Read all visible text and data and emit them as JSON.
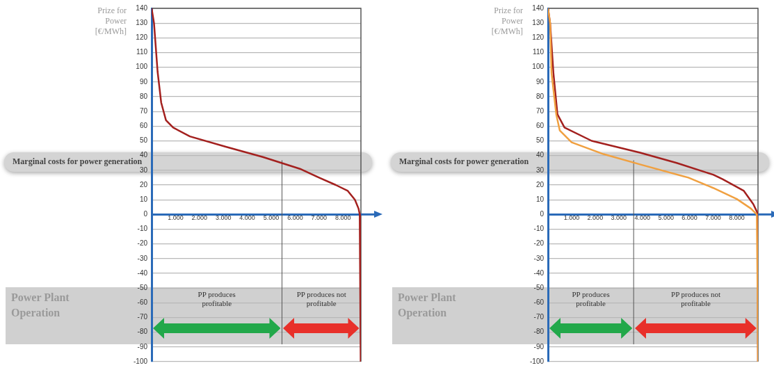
{
  "chart_data": [
    {
      "type": "line",
      "ylabel": "Prize for Power [€/MWh]",
      "series": [
        {
          "color": "#a3201e",
          "x": [
            0,
            100,
            250,
            400,
            600,
            900,
            1600,
            3100,
            4650,
            6200,
            7000,
            7700,
            8200,
            8500,
            8650,
            8700,
            8720,
            8740
          ],
          "values": [
            140,
            130,
            97,
            76,
            64,
            59,
            53,
            46,
            39,
            31,
            25,
            20,
            16,
            10,
            4,
            0,
            -50,
            -100
          ]
        }
      ],
      "xlim": [
        0,
        8750
      ],
      "xticks": [
        {
          "value": 1000,
          "label": "1.000"
        },
        {
          "value": 2000,
          "label": "2.000"
        },
        {
          "value": 3000,
          "label": "3.000"
        },
        {
          "value": 4000,
          "label": "4.000"
        },
        {
          "value": 5000,
          "label": "5.000"
        },
        {
          "value": 6000,
          "label": "6.000"
        },
        {
          "value": 7000,
          "label": "7.000"
        },
        {
          "value": 8000,
          "label": "8.000"
        }
      ],
      "ylim": [
        -100,
        140
      ],
      "yticks": [
        -100,
        -90,
        -80,
        -70,
        -60,
        -50,
        -40,
        -30,
        -20,
        -10,
        0,
        10,
        20,
        30,
        40,
        50,
        60,
        70,
        80,
        90,
        100,
        110,
        120,
        130,
        140
      ],
      "grid": "y",
      "annotations": [
        "Marginal costs for power generation",
        "Power Plant Operation",
        "PP produces profitable",
        "PP produces not profitable"
      ],
      "ref_lines": [
        {
          "axis": "x",
          "value": 5450,
          "color": "#555555"
        }
      ]
    },
    {
      "type": "line",
      "ylabel": "Prize for Power [€/MWh]",
      "series": [
        {
          "color": "#f0a040",
          "x": [
            0,
            90,
            150,
            350,
            500,
            1000,
            2350,
            3900,
            5950,
            7000,
            8000,
            8600,
            8850,
            8880,
            8900
          ],
          "values": [
            140,
            130,
            96,
            68,
            57,
            49,
            41,
            34,
            25,
            18,
            10.5,
            4,
            0,
            -50,
            -100
          ]
        },
        {
          "color": "#a3201e",
          "x": [
            0,
            90,
            230,
            400,
            700,
            1850,
            3900,
            5450,
            7000,
            7400,
            8300,
            8700,
            8850,
            8890,
            8900
          ],
          "values": [
            140,
            130,
            96,
            68,
            59,
            50,
            42,
            35,
            27,
            24,
            16,
            7,
            2,
            0,
            -100
          ]
        }
      ],
      "xlim": [
        0,
        8900
      ],
      "xticks": [
        {
          "value": 1000,
          "label": "1.000"
        },
        {
          "value": 2000,
          "label": "2.000"
        },
        {
          "value": 3000,
          "label": "3.000"
        },
        {
          "value": 4000,
          "label": "4.000"
        },
        {
          "value": 5000,
          "label": "5.000"
        },
        {
          "value": 6000,
          "label": "6.000"
        },
        {
          "value": 7000,
          "label": "7.000"
        },
        {
          "value": 8000,
          "label": "8.000"
        }
      ],
      "ylim": [
        -100,
        140
      ],
      "yticks": [
        -100,
        -90,
        -80,
        -70,
        -60,
        -50,
        -40,
        -30,
        -20,
        -10,
        0,
        10,
        20,
        30,
        40,
        50,
        60,
        70,
        80,
        90,
        100,
        110,
        120,
        130,
        140
      ],
      "grid": "y",
      "annotations": [
        "Marginal costs for power generation",
        "Power Plant Operation",
        "PP produces profitable",
        "PP produces not profitable"
      ],
      "ref_lines": [
        {
          "axis": "x",
          "value": 3630,
          "color": "#555555"
        }
      ]
    }
  ]
}
